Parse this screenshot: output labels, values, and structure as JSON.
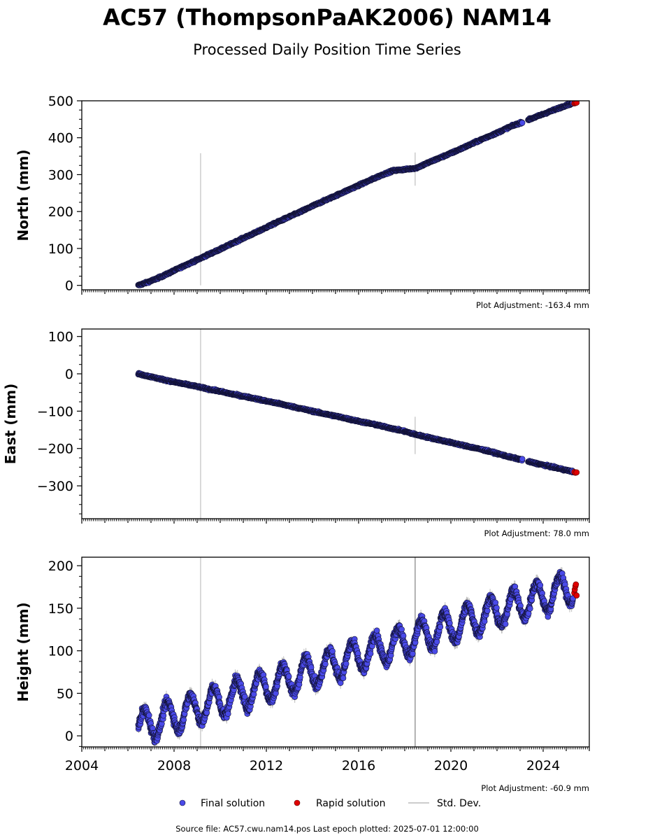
{
  "title": "AC57 (ThompsonPaAK2006) NAM14",
  "subtitle": "Processed Daily Position Time Series",
  "source_text": "Source file: AC57.cwu.nam14.pos  Last epoch plotted: 2025-07-01 12:00:00",
  "legend": {
    "final_label": "Final solution",
    "rapid_label": "Rapid solution",
    "std_label": "Std. Dev."
  },
  "colors": {
    "final": "#4a4ae8",
    "rapid": "#e00000",
    "std": "#bbbbbb",
    "marker_edge": "#111133"
  },
  "chart_data": [
    {
      "type": "scatter",
      "panel": "north",
      "ylabel": "North (mm)",
      "adjustment": "Plot Adjustment: -163.4 mm",
      "xlim": [
        2004.0,
        2026.0
      ],
      "ylim": [
        -12,
        500
      ],
      "y_ticks": [
        0,
        100,
        200,
        300,
        400,
        500
      ],
      "x_ticks": [
        2004,
        2008,
        2012,
        2016,
        2020,
        2024
      ],
      "x_tick_labels_shown": false,
      "series": [
        {
          "name": "Final solution",
          "x": [
            2006.45,
            2007.0,
            2007.5,
            2008.0,
            2008.5,
            2009.0,
            2009.5,
            2010.0,
            2010.5,
            2011.0,
            2011.5,
            2012.0,
            2012.5,
            2013.0,
            2013.5,
            2014.0,
            2014.5,
            2015.0,
            2015.5,
            2016.0,
            2016.5,
            2017.0,
            2017.5,
            2018.0,
            2018.5,
            2019.0,
            2019.5,
            2020.0,
            2020.5,
            2021.0,
            2021.5,
            2022.0,
            2022.5,
            2023.0,
            2023.5,
            2024.0,
            2024.5,
            2025.0,
            2025.3
          ],
          "y": [
            0,
            12,
            25,
            40,
            55,
            69,
            84,
            98,
            113,
            128,
            142,
            157,
            172,
            186,
            200,
            215,
            229,
            243,
            257,
            271,
            285,
            299,
            311,
            314,
            318,
            332,
            345,
            358,
            372,
            386,
            400,
            413,
            428,
            440,
            452,
            464,
            476,
            488,
            494
          ]
        },
        {
          "name": "Rapid solution",
          "x": [
            2025.35,
            2025.4,
            2025.45
          ],
          "y": [
            493,
            494,
            495
          ]
        }
      ],
      "std_spikes": [
        {
          "x": 2009.15,
          "y_low": 0,
          "y_high": 358
        },
        {
          "x": 2018.45,
          "y_low": 270,
          "y_high": 360
        }
      ],
      "grid": false
    },
    {
      "type": "scatter",
      "panel": "east",
      "ylabel": "East (mm)",
      "adjustment": "Plot Adjustment: 78.0 mm",
      "xlim": [
        2004.0,
        2026.0
      ],
      "ylim": [
        -388,
        120
      ],
      "y_ticks": [
        -300,
        -200,
        -100,
        0,
        100
      ],
      "y_tick_labels": [
        "−300",
        "−200",
        "−100",
        "0",
        "100"
      ],
      "x_ticks": [
        2004,
        2008,
        2012,
        2016,
        2020,
        2024
      ],
      "x_tick_labels_shown": false,
      "series": [
        {
          "name": "Final solution",
          "x": [
            2006.45,
            2007.0,
            2007.5,
            2008.0,
            2008.5,
            2009.0,
            2009.5,
            2010.0,
            2010.5,
            2011.0,
            2011.5,
            2012.0,
            2012.5,
            2013.0,
            2013.5,
            2014.0,
            2014.5,
            2015.0,
            2015.5,
            2016.0,
            2016.5,
            2017.0,
            2017.5,
            2018.0,
            2018.5,
            2019.0,
            2019.5,
            2020.0,
            2020.5,
            2021.0,
            2021.5,
            2022.0,
            2022.5,
            2023.0,
            2023.5,
            2024.0,
            2024.5,
            2025.0,
            2025.3
          ],
          "y": [
            0,
            -8,
            -15,
            -22,
            -28,
            -34,
            -41,
            -47,
            -54,
            -60,
            -66,
            -73,
            -79,
            -86,
            -93,
            -100,
            -107,
            -113,
            -120,
            -127,
            -133,
            -140,
            -147,
            -154,
            -163,
            -170,
            -177,
            -184,
            -191,
            -198,
            -205,
            -213,
            -222,
            -229,
            -237,
            -244,
            -251,
            -258,
            -262
          ]
        },
        {
          "name": "Rapid solution",
          "x": [
            2025.35,
            2025.4,
            2025.45
          ],
          "y": [
            -263,
            -265,
            -264
          ]
        }
      ],
      "std_spikes": [
        {
          "x": 2009.15,
          "y_low": -388,
          "y_high": 120
        },
        {
          "x": 2018.45,
          "y_low": -215,
          "y_high": -115
        }
      ],
      "grid": false
    },
    {
      "type": "scatter",
      "panel": "height",
      "ylabel": "Height (mm)",
      "adjustment": "Plot Adjustment: -60.9 mm",
      "xlim": [
        2004.0,
        2026.0
      ],
      "ylim": [
        -13,
        210
      ],
      "y_ticks": [
        0,
        50,
        100,
        150,
        200
      ],
      "x_ticks": [
        2004,
        2008,
        2012,
        2016,
        2020,
        2024
      ],
      "x_tick_labels": [
        "2004",
        "2008",
        "2012",
        "2016",
        "2020",
        "2024"
      ],
      "series": [
        {
          "name": "Final solution",
          "trend": {
            "x0": 2006.45,
            "y0": 10,
            "x1": 2025.3,
            "y1": 175
          },
          "annual_amplitude": 18,
          "annual_phase_peak_month": 9,
          "x_range": [
            2006.45,
            2025.3
          ]
        },
        {
          "name": "Rapid solution",
          "x": [
            2025.35,
            2025.37,
            2025.4,
            2025.42,
            2025.45
          ],
          "y": [
            168,
            172,
            176,
            178,
            165
          ]
        }
      ],
      "std_spikes": [
        {
          "x": 2009.15,
          "y_low": -13,
          "y_high": 210
        },
        {
          "x": 2018.45,
          "y_low": -13,
          "y_high": 210
        }
      ],
      "grid": false
    }
  ]
}
